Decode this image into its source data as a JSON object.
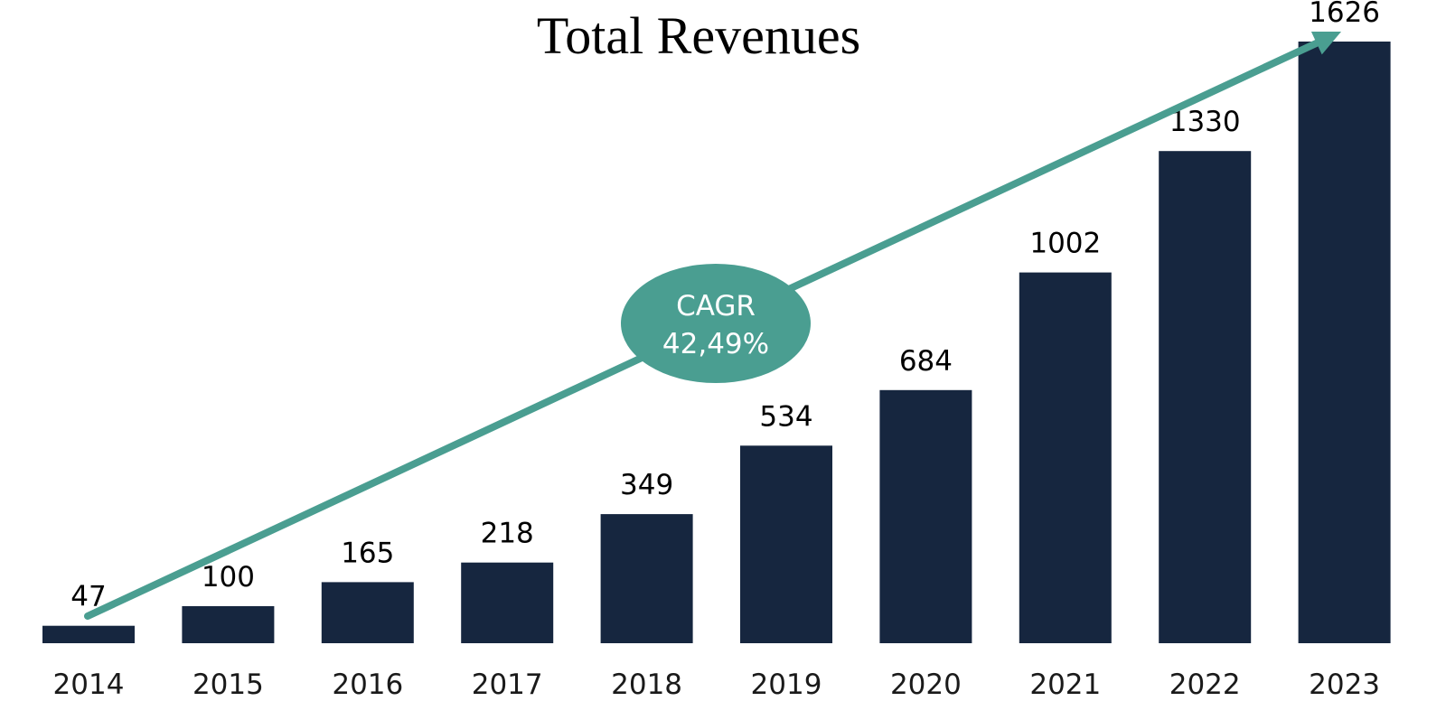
{
  "chart_data": {
    "type": "bar",
    "title": "Total Revenues",
    "categories": [
      "2014",
      "2015",
      "2016",
      "2017",
      "2018",
      "2019",
      "2020",
      "2021",
      "2022",
      "2023"
    ],
    "values": [
      47,
      100,
      165,
      218,
      349,
      534,
      684,
      1002,
      1330,
      1626
    ],
    "value_labels": [
      "47",
      "100",
      "165",
      "218",
      "349",
      "534",
      "684",
      "1002",
      "1330",
      "1626"
    ],
    "xlabel": "",
    "ylabel": "",
    "ylim": [
      0,
      1626
    ],
    "grid": false,
    "legend": "none",
    "annotation": {
      "type": "trend-arrow",
      "label_line1": "CAGR",
      "label_line2": "42,49%"
    },
    "colors": {
      "bar": "#16263f",
      "trend": "#4a9e91",
      "badge_text": "#ffffff"
    }
  }
}
